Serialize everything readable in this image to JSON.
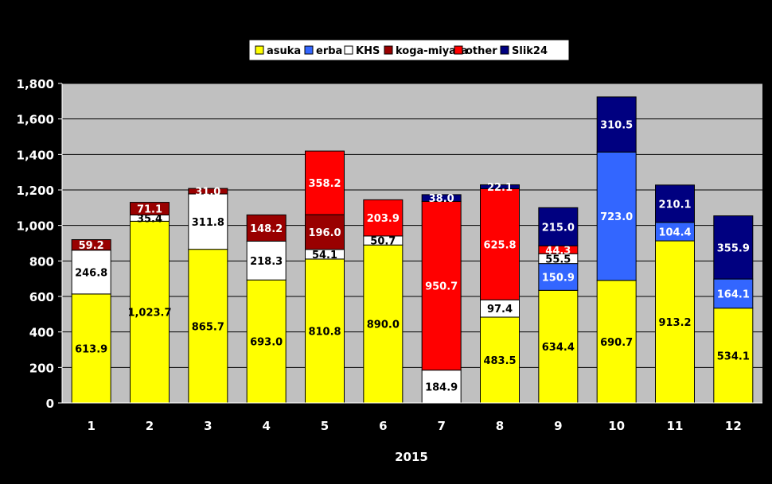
{
  "chart_data": {
    "type": "bar",
    "stacked": true,
    "title": "",
    "xlabel": "2015",
    "ylabel": "",
    "ylim": [
      0,
      1800
    ],
    "yticks": [
      "0",
      "200",
      "400",
      "600",
      "800",
      "1,000",
      "1,200",
      "1,400",
      "1,600",
      "1,800"
    ],
    "yticks_values": [
      0,
      200,
      400,
      600,
      800,
      1000,
      1200,
      1400,
      1600,
      1800
    ],
    "grid": true,
    "legend_position": "top",
    "categories": [
      "1",
      "2",
      "3",
      "4",
      "5",
      "6",
      "7",
      "8",
      "9",
      "10",
      "11",
      "12"
    ],
    "series": [
      {
        "name": "asuka",
        "color": "#ffff00",
        "label_color": "#000000",
        "values": [
          613.9,
          1023.7,
          865.7,
          693.0,
          810.8,
          890.0,
          0,
          483.5,
          634.4,
          690.7,
          913.2,
          534.1
        ],
        "labels": [
          "613.9",
          "1,023.7",
          "865.7",
          "693.0",
          "810.8",
          "890.0",
          "",
          "483.5",
          "634.4",
          "690.7",
          "913.2",
          "534.1"
        ]
      },
      {
        "name": "erba",
        "color": "#3366ff",
        "label_color": "#ffffff",
        "values": [
          0,
          0,
          0,
          0,
          0,
          0,
          0,
          0,
          150.9,
          723.0,
          104.4,
          164.1
        ],
        "labels": [
          "",
          "",
          "",
          "",
          "",
          "",
          "",
          "",
          "150.9",
          "723.0",
          "104.4",
          "164.1"
        ]
      },
      {
        "name": "KHS",
        "color": "#ffffff",
        "label_color": "#000000",
        "values": [
          246.8,
          35.4,
          311.8,
          218.3,
          54.1,
          50.7,
          184.9,
          97.4,
          55.5,
          0,
          0,
          0
        ],
        "labels": [
          "246.8",
          "35.4",
          "311.8",
          "218.3",
          "54.1",
          "50.7",
          "184.9",
          "97.4",
          "55.5",
          "",
          "",
          ""
        ]
      },
      {
        "name": "koga-miyata",
        "color": "#990000",
        "label_color": "#ffffff",
        "values": [
          59.2,
          71.1,
          31.0,
          148.2,
          196.0,
          0,
          0,
          0,
          0,
          0,
          0,
          0
        ],
        "labels": [
          "59.2",
          "71.1",
          "31.0",
          "148.2",
          "196.0",
          "",
          "",
          "",
          "",
          "",
          "",
          ""
        ]
      },
      {
        "name": "other",
        "color": "#ff0000",
        "label_color": "#ffffff",
        "values": [
          0,
          0,
          0,
          0,
          358.2,
          203.9,
          950.7,
          625.8,
          44.3,
          0,
          0,
          0
        ],
        "labels": [
          "",
          "",
          "",
          "",
          "358.2",
          "203.9",
          "950.7",
          "625.8",
          "44.3",
          "",
          "",
          ""
        ]
      },
      {
        "name": "Slik24",
        "color": "#000080",
        "label_color": "#ffffff",
        "values": [
          0,
          0,
          0,
          0,
          0,
          0,
          38.0,
          22.1,
          215.0,
          310.5,
          210.1,
          355.9
        ],
        "labels": [
          "",
          "",
          "",
          "",
          "",
          "",
          "38.0",
          "22.1",
          "215.0",
          "310.5",
          "210.1",
          "355.9"
        ]
      }
    ]
  }
}
